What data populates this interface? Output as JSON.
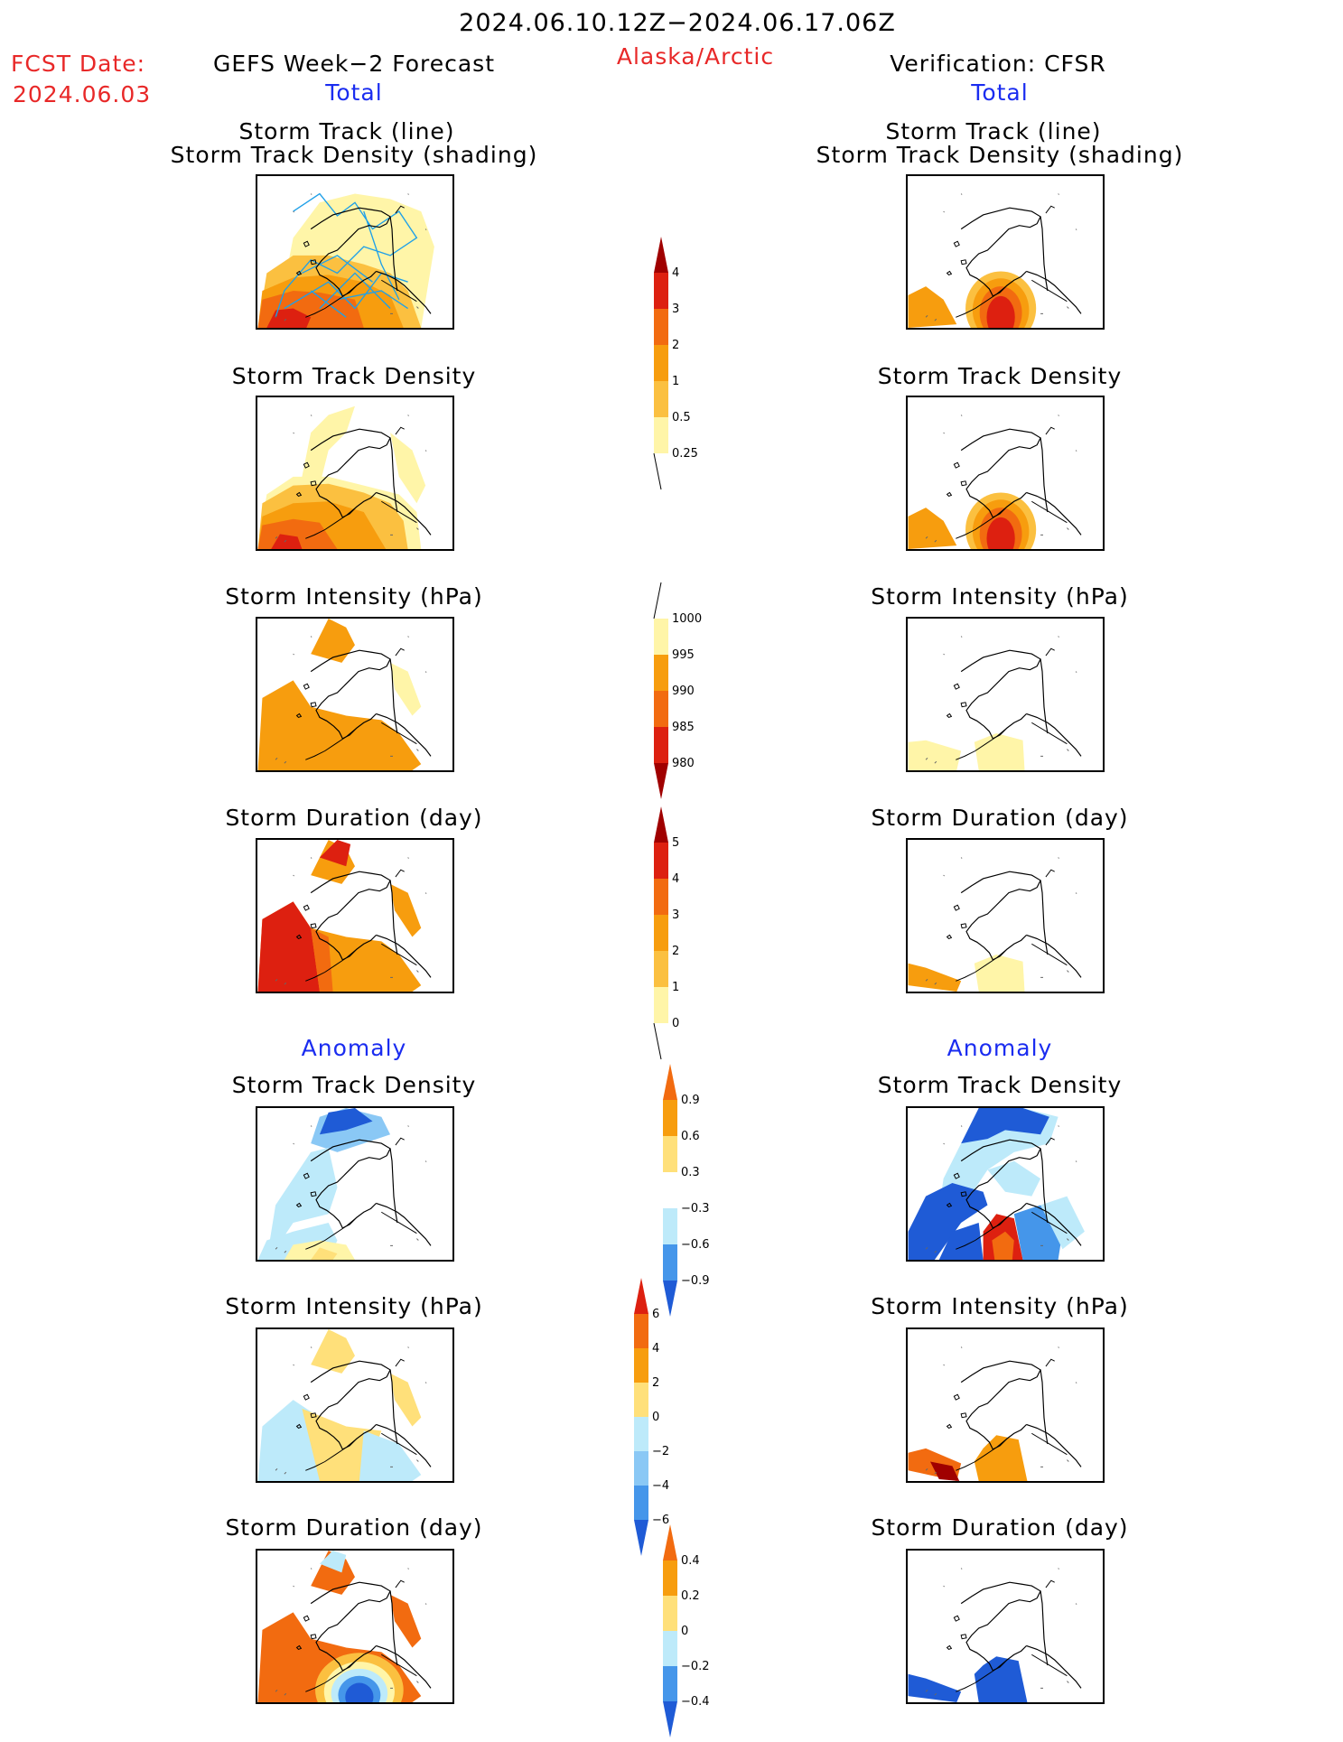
{
  "header": {
    "date_range": "2024.06.10.12Z−2024.06.17.06Z",
    "fcst_label": "FCST Date:",
    "fcst_date": "2024.06.03",
    "left_title": "GEFS Week−2 Forecast",
    "region": "Alaska/Arctic",
    "right_title": "Verification: CFSR",
    "total_left": "Total",
    "total_right": "Total"
  },
  "sections": {
    "anomaly_left": "Anomaly",
    "anomaly_right": "Anomaly"
  },
  "panel_titles": {
    "track_line": "Storm Track (line)",
    "track_shading": "Storm Track Density (shading)",
    "density": "Storm Track Density",
    "intensity": "Storm Intensity (hPa)",
    "duration": "Storm Duration (day)"
  },
  "colorbars": {
    "density": [
      "4",
      "3",
      "2",
      "1",
      "0.5",
      "0.25"
    ],
    "intensity": [
      "1000",
      "995",
      "990",
      "985",
      "980"
    ],
    "duration": [
      "5",
      "4",
      "3",
      "2",
      "1",
      "0"
    ],
    "density_anom": [
      "0.9",
      "0.6",
      "0.3",
      "−0.3",
      "−0.6",
      "−0.9"
    ],
    "intensity_anom": [
      "6",
      "4",
      "2",
      "0",
      "−2",
      "−4",
      "−6"
    ],
    "duration_anom": [
      "0.4",
      "0.2",
      "0",
      "−0.2",
      "−0.4"
    ]
  },
  "colors": {
    "pale_yellow": "#fff5a8",
    "yellow": "#ffe07a",
    "light_orange": "#fbc040",
    "orange": "#f79d0e",
    "dark_orange": "#f26b10",
    "red": "#dd2010",
    "dark_red": "#a00000",
    "pale_blue": "#bdeafa",
    "light_blue": "#8ac8f5",
    "mid_blue": "#4596ea",
    "blue": "#1f5bd6",
    "track_line": "#1fa0e8",
    "heading_red": "#e82828",
    "heading_blue": "#1a2cf0"
  }
}
